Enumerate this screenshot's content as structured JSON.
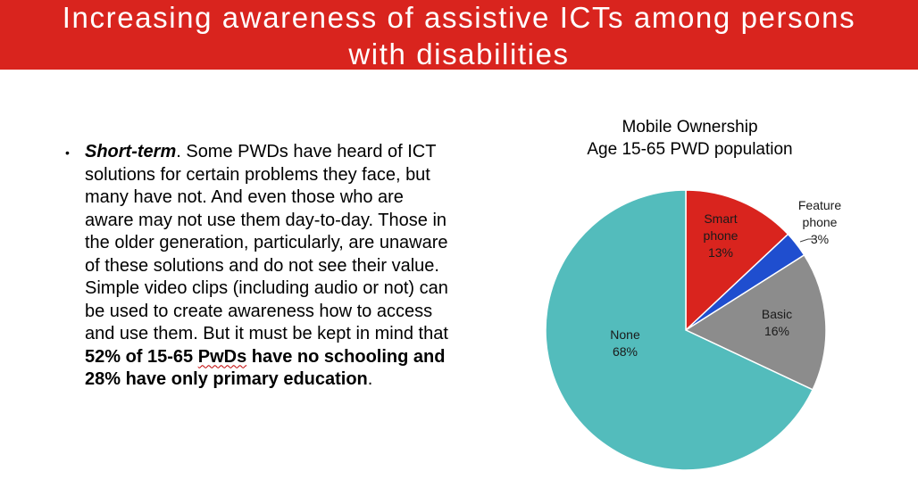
{
  "slide": {
    "title_line1": "Increasing awareness of assistive ICTs among persons",
    "title_line2": "with disabilities",
    "banner_color": "#d9241e",
    "bullet": {
      "marker": "•",
      "lead": "Short-term",
      "part1": ".  Some PWDs have heard of ICT solutions for certain problems they face, but many have not. And even those who are aware may not use them day-to-day. Those in the older generation, particularly, are unaware of these solutions and do not see their value. Simple video clips (including audio or not) can be used to create awareness how to access and use them.  But it must be kept in mind that ",
      "bold1": "52% of 15-65 ",
      "bold_squiggle": "PwDs",
      "bold2": " have no schooling and 28% have only primary education",
      "end": "."
    }
  },
  "chart_data": {
    "type": "pie",
    "title": [
      "Mobile Ownership",
      "Age 15-65 PWD population"
    ],
    "categories": [
      "Smart phone",
      "Feature phone",
      "Basic",
      "None"
    ],
    "values": [
      13,
      3,
      16,
      68
    ],
    "labels": [
      [
        "Smart",
        "phone",
        "13%"
      ],
      [
        "Feature",
        "phone",
        "3%"
      ],
      [
        "Basic",
        "16%"
      ],
      [
        "None",
        "68%"
      ]
    ],
    "colors": [
      "#d9241e",
      "#1f4ecf",
      "#8c8c8c",
      "#53bcbc"
    ],
    "start_angle": "12 o'clock",
    "direction": "clockwise"
  }
}
